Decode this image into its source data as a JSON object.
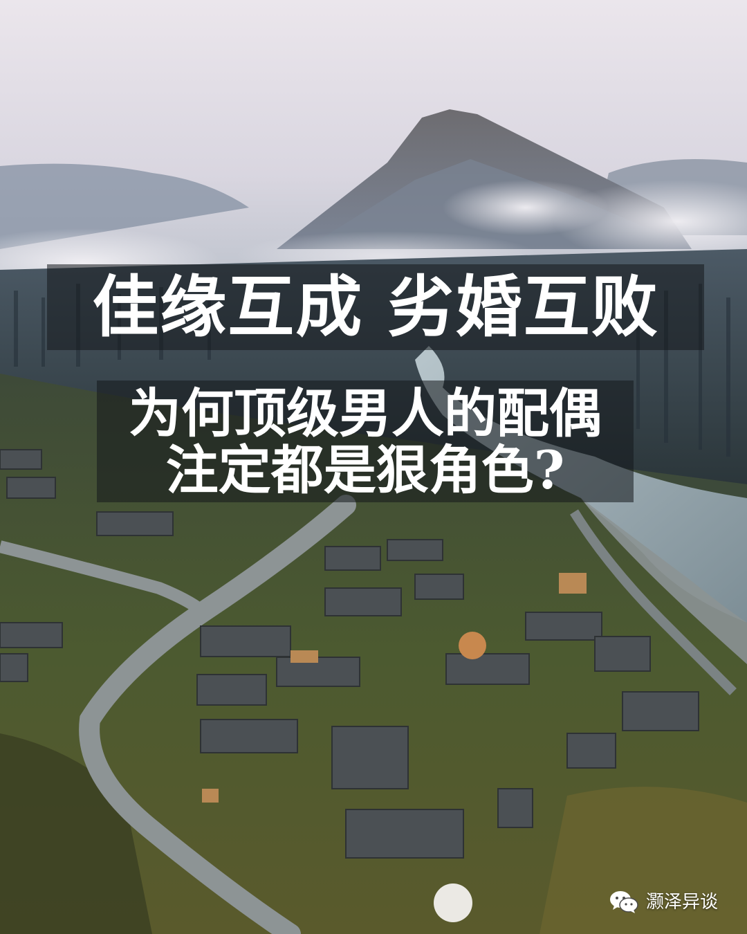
{
  "headline": "佳缘互成 劣婚互败",
  "subtitle": {
    "line1": "为何顶级男人的配偶",
    "line2": "注定都是狠角色?"
  },
  "watermark": {
    "icon": "wechat-icon",
    "text": "灏泽异谈"
  },
  "colors": {
    "sky": "#e6e0e8",
    "mountain": "#6f7888",
    "forest": "#2f3e44",
    "river": "#a8b8c0",
    "grass": "#4f5e32",
    "roof": "#4a4e52",
    "band": "#14181c"
  }
}
